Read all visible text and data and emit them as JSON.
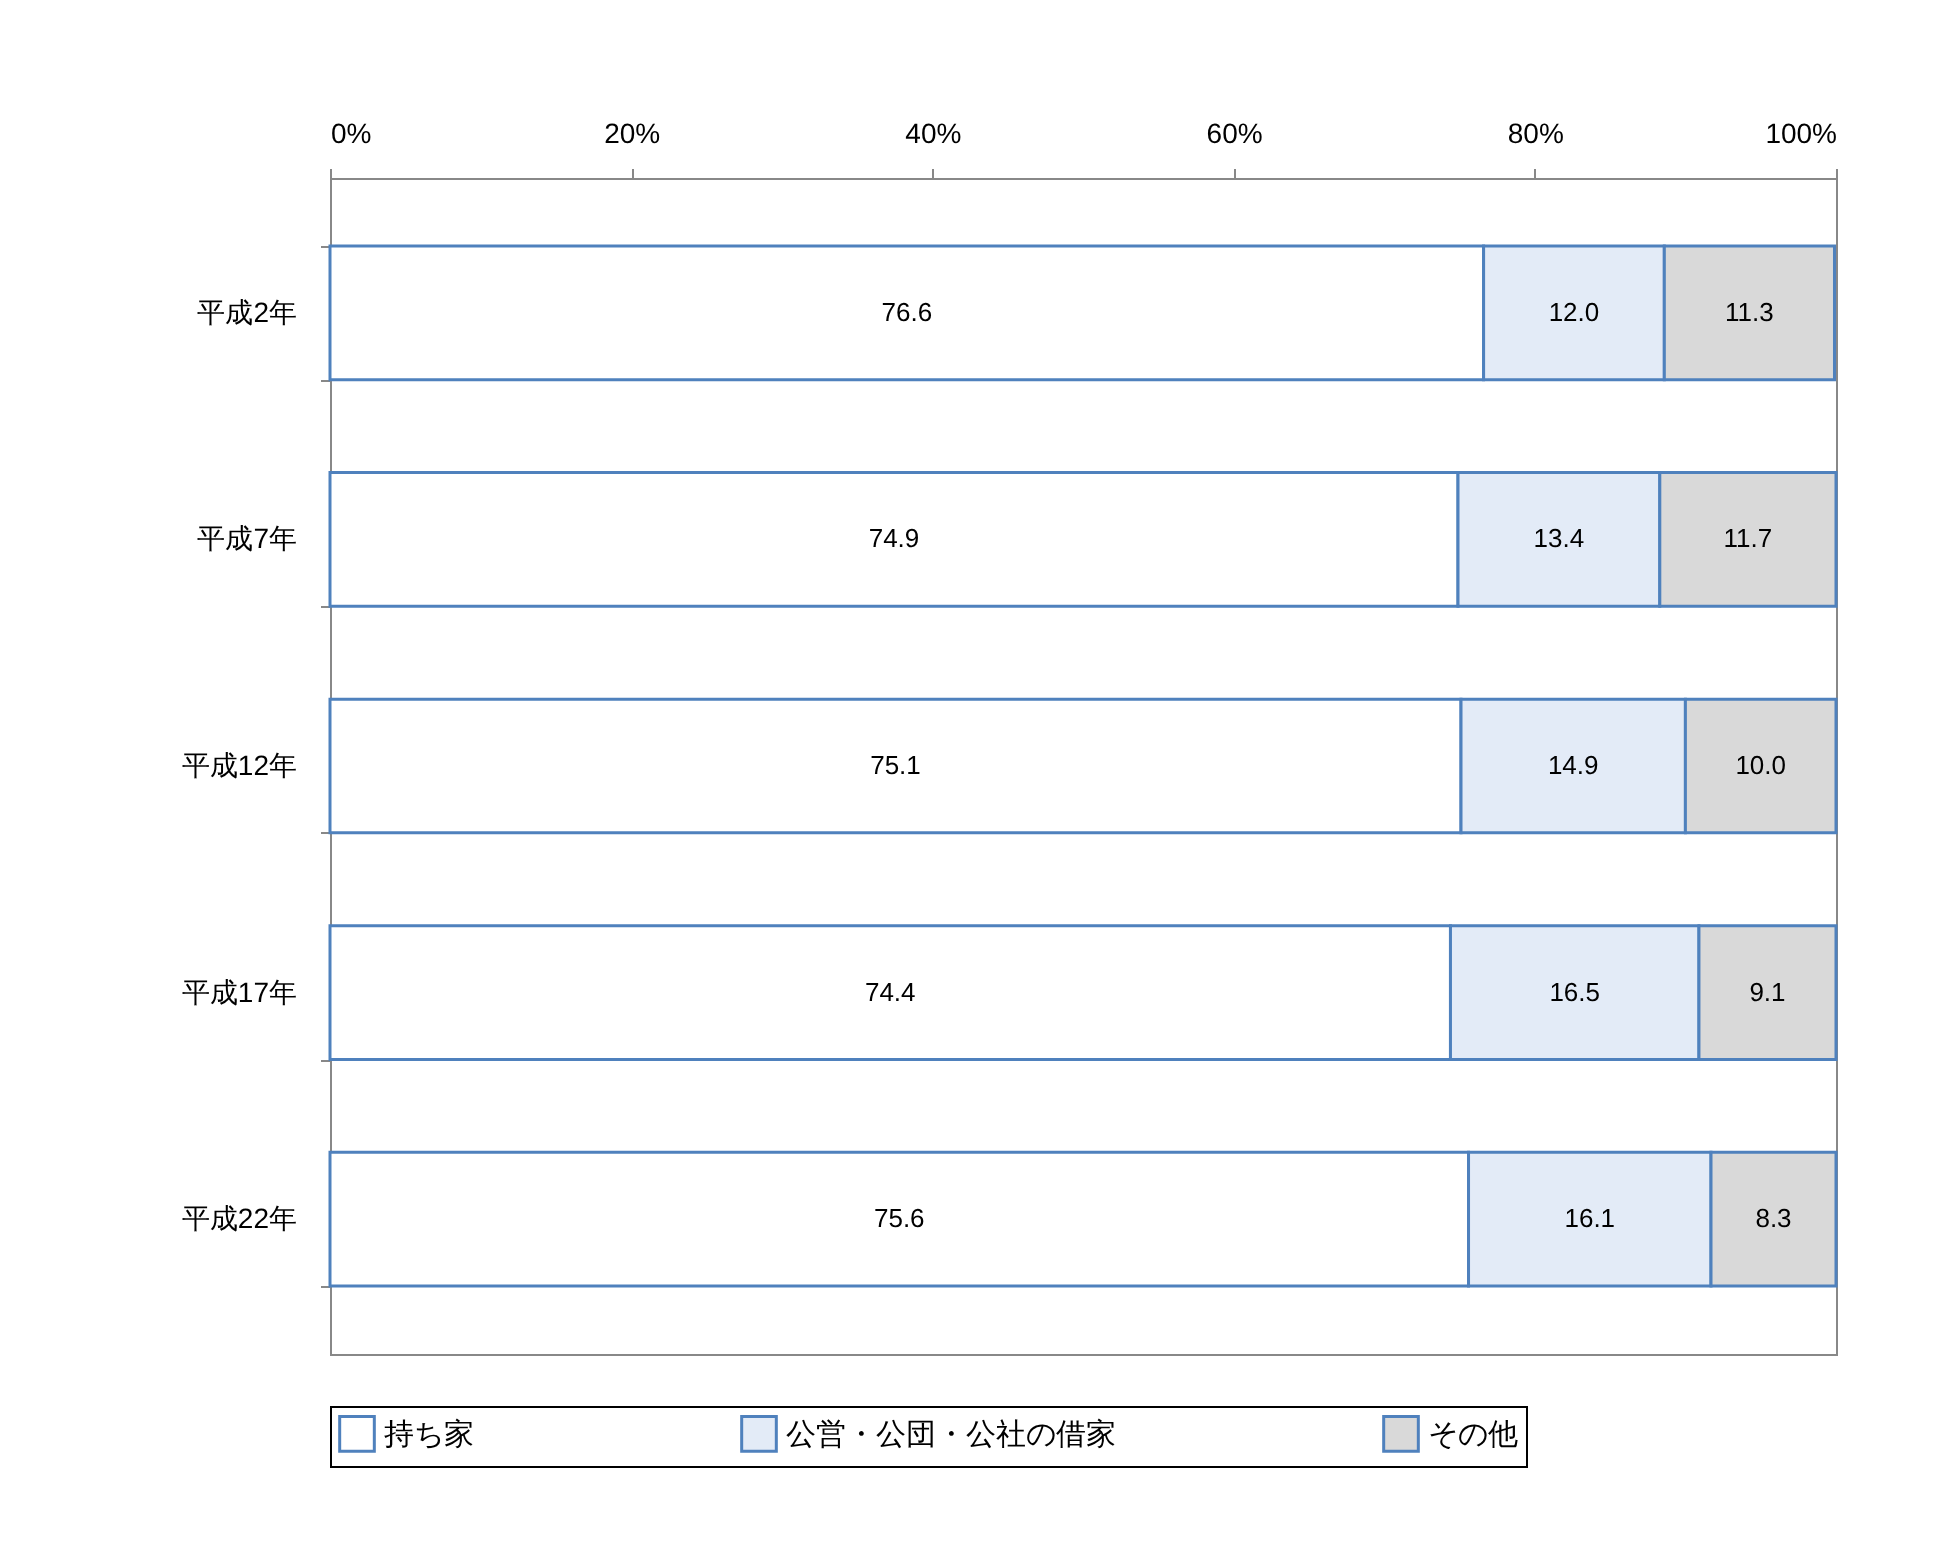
{
  "chart_data": {
    "type": "bar",
    "orientation": "horizontal",
    "stacked": true,
    "categories": [
      "平成2年",
      "平成7年",
      "平成12年",
      "平成17年",
      "平成22年"
    ],
    "series": [
      {
        "name": "持ち家",
        "color": "#ffffff",
        "values": [
          76.6,
          74.9,
          75.1,
          74.4,
          75.6
        ],
        "value_labels": [
          "76.6",
          "74.9",
          "75.1",
          "74.4",
          "75.6"
        ]
      },
      {
        "name": "公営・公団・公社の借家",
        "color": "#e3ebf7",
        "values": [
          12.0,
          13.4,
          14.9,
          16.5,
          16.1
        ],
        "value_labels": [
          "12.0",
          "13.4",
          "14.9",
          "16.5",
          "16.1"
        ]
      },
      {
        "name": "その他",
        "color": "#d9d9d9",
        "values": [
          11.3,
          11.7,
          10.0,
          9.1,
          8.3
        ],
        "value_labels": [
          "11.3",
          "11.7",
          "10.0",
          "9.1",
          "8.3"
        ]
      }
    ],
    "xlim": [
      0,
      100
    ],
    "xticks": [
      {
        "value": 0,
        "label": "0%"
      },
      {
        "value": 20,
        "label": "20%"
      },
      {
        "value": 40,
        "label": "40%"
      },
      {
        "value": 60,
        "label": "60%"
      },
      {
        "value": 80,
        "label": "80%"
      },
      {
        "value": 100,
        "label": "100%"
      }
    ],
    "legend": "bottom",
    "grid": false
  }
}
